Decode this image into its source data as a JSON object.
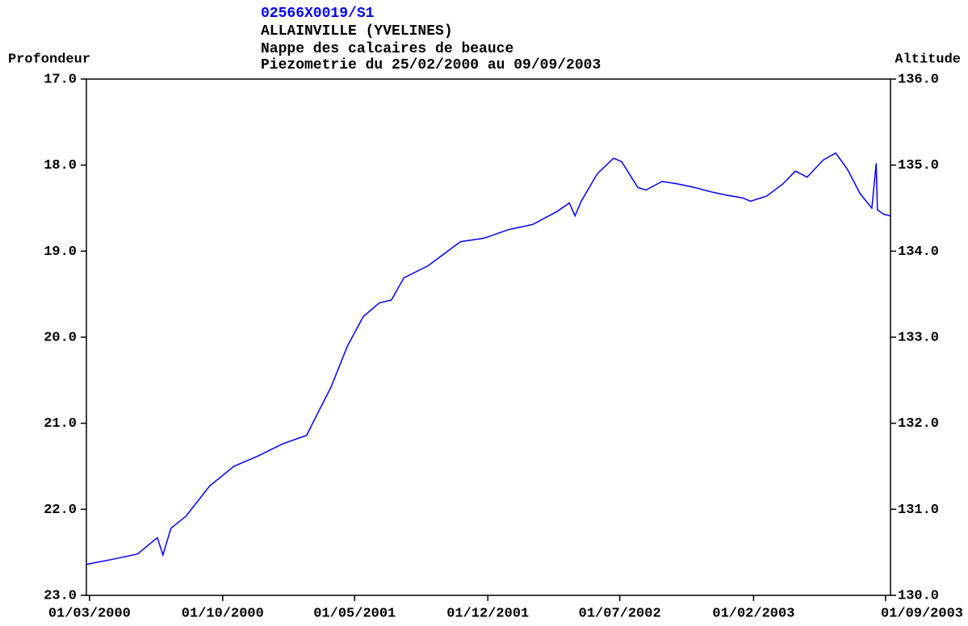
{
  "chart_data": {
    "type": "line",
    "title": "02566X0019/S1",
    "title_color": "#0000ff",
    "subtitle": [
      "ALLAINVILLE (YVELINES)",
      "Nappe des calcaires de beauce",
      "Piezometrie du 25/02/2000 au 09/09/2003"
    ],
    "ylabel": "Profondeur",
    "y2label": "Altitude",
    "color": "#0000ff",
    "xlim": [
      "25/02/2000",
      "09/09/2003"
    ],
    "xticks": [
      "01/03/2000",
      "01/10/2000",
      "01/05/2001",
      "01/12/2001",
      "01/07/2002",
      "01/02/2003",
      "01/09/2003"
    ],
    "ylim": [
      23.0,
      17.0
    ],
    "yticks": [
      {
        "value": 17,
        "label": "17.0"
      },
      {
        "value": 18,
        "label": "18.0"
      },
      {
        "value": 19,
        "label": "19.0"
      },
      {
        "value": 20,
        "label": "20.0"
      },
      {
        "value": 21,
        "label": "21.0"
      },
      {
        "value": 22,
        "label": "22.0"
      },
      {
        "value": 23,
        "label": "23.0"
      }
    ],
    "y2lim": [
      130,
      136
    ],
    "y2ticks": [
      {
        "value": 136,
        "label": "136.0"
      },
      {
        "value": 135,
        "label": "135.0"
      },
      {
        "value": 134,
        "label": "134.0"
      },
      {
        "value": 133,
        "label": "133.0"
      },
      {
        "value": 132,
        "label": "132.0"
      },
      {
        "value": 131,
        "label": "131.0"
      },
      {
        "value": 130,
        "label": "130.0"
      }
    ],
    "x": [
      "25/02/2000",
      "08/04/2000",
      "17/05/2000",
      "18/06/2000",
      "27/06/2000",
      "10/07/2000",
      "03/08/2000",
      "10/09/2000",
      "19/10/2000",
      "27/11/2000",
      "05/01/2001",
      "13/02/2001",
      "26/02/2001",
      "24/03/2001",
      "19/04/2001",
      "15/05/2001",
      "10/06/2001",
      "29/06/2001",
      "19/07/2001",
      "27/08/2001",
      "22/09/2001",
      "18/10/2001",
      "25/11/2001",
      "03/01/2002",
      "11/02/2002",
      "22/03/2002",
      "11/04/2002",
      "20/04/2002",
      "30/04/2002",
      "26/05/2002",
      "21/06/2002",
      "04/07/2002",
      "30/07/2002",
      "12/08/2002",
      "07/09/2002",
      "03/10/2002",
      "29/10/2002",
      "24/11/2002",
      "20/12/2002",
      "14/01/2003",
      "27/01/2003",
      "22/02/2003",
      "20/03/2003",
      "09/04/2003",
      "28/04/2003",
      "24/05/2003",
      "13/06/2003",
      "02/07/2003",
      "22/07/2003",
      "10/08/2003",
      "17/08/2003",
      "19/08/2003",
      "29/08/2003",
      "09/09/2003"
    ],
    "values": [
      22.64,
      22.58,
      22.52,
      22.33,
      22.53,
      22.22,
      22.08,
      21.73,
      21.5,
      21.38,
      21.24,
      21.14,
      20.95,
      20.58,
      20.11,
      19.76,
      19.6,
      19.57,
      19.31,
      19.17,
      19.03,
      18.89,
      18.85,
      18.75,
      18.69,
      18.54,
      18.44,
      18.59,
      18.42,
      18.1,
      17.92,
      17.96,
      18.26,
      18.29,
      18.19,
      18.22,
      18.26,
      18.31,
      18.35,
      18.38,
      18.42,
      18.36,
      18.22,
      18.07,
      18.14,
      17.94,
      17.86,
      18.05,
      18.33,
      18.5,
      17.98,
      18.52,
      18.57,
      18.59
    ]
  }
}
